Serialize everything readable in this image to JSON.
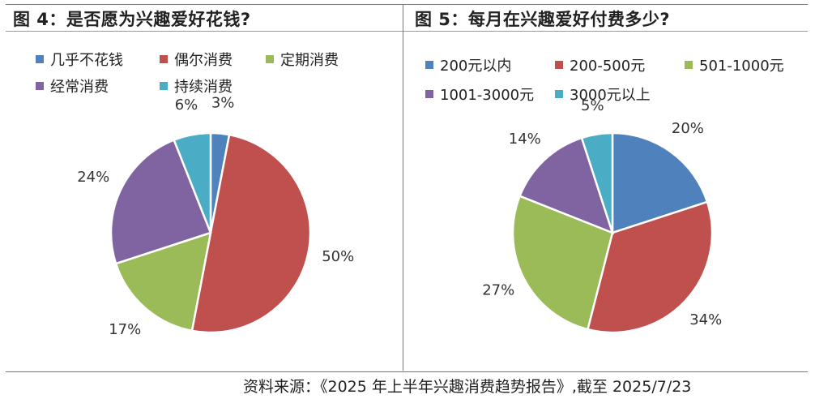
{
  "source": "资料来源：《2025 年上半年兴趣消费趋势报告》,截至 2025/7/23",
  "chart_data": [
    {
      "type": "pie",
      "title": "图 4：是否愿为兴趣爱好花钱?",
      "categories": [
        "几乎不花钱",
        "偶尔消费",
        "定期消费",
        "经常消费",
        "持续消费"
      ],
      "values": [
        3,
        50,
        17,
        24,
        6
      ],
      "value_labels": [
        "3%",
        "50%",
        "17%",
        "24%",
        "6%"
      ],
      "colors": [
        "#4f81bd",
        "#c0504d",
        "#9bbb59",
        "#8064a2",
        "#4bacc6"
      ],
      "legend_position": "top"
    },
    {
      "type": "pie",
      "title": "图 5：每月在兴趣爱好付费多少?",
      "categories": [
        "200元以内",
        "200-500元",
        "501-1000元",
        "1001-3000元",
        "3000元以上"
      ],
      "values": [
        20,
        34,
        27,
        14,
        5
      ],
      "value_labels": [
        "20%",
        "34%",
        "27%",
        "14%",
        "5%"
      ],
      "colors": [
        "#4f81bd",
        "#c0504d",
        "#9bbb59",
        "#8064a2",
        "#4bacc6"
      ],
      "legend_position": "top"
    }
  ]
}
